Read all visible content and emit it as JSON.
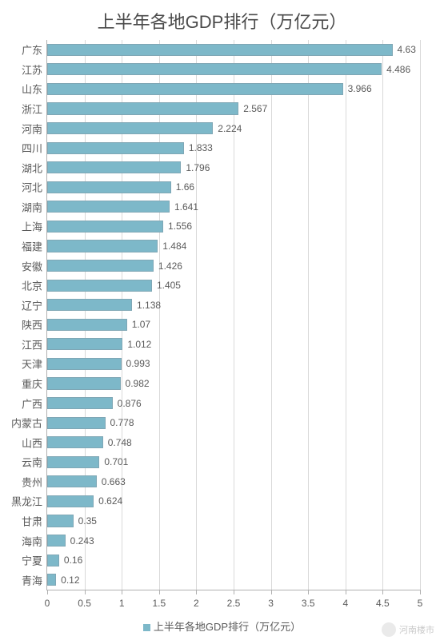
{
  "chart": {
    "type": "bar-horizontal",
    "title": "上半年各地GDP排行（万亿元）",
    "title_fontsize": 22,
    "title_color": "#4a4a4a",
    "background_color": "#ffffff",
    "bar_color": "#7db8c9",
    "bar_border_color": "#7fa7b5",
    "grid_color": "#d9d9d9",
    "axis_color": "#b0b0b0",
    "label_color": "#5a5a5a",
    "label_fontsize": 13,
    "value_label_fontsize": 12,
    "x": {
      "min": 0,
      "max": 5,
      "step": 0.5,
      "ticks": [
        "0",
        "0.5",
        "1",
        "1.5",
        "2",
        "2.5",
        "3",
        "3.5",
        "4",
        "4.5",
        "5"
      ]
    },
    "bar_fill_ratio": 0.62,
    "categories": [
      "广东",
      "江苏",
      "山东",
      "浙江",
      "河南",
      "四川",
      "湖北",
      "河北",
      "湖南",
      "上海",
      "福建",
      "安徽",
      "北京",
      "辽宁",
      "陕西",
      "江西",
      "天津",
      "重庆",
      "广西",
      "内蒙古",
      "山西",
      "云南",
      "贵州",
      "黑龙江",
      "甘肃",
      "海南",
      "宁夏",
      "青海"
    ],
    "values": [
      4.63,
      4.486,
      3.966,
      2.567,
      2.224,
      1.833,
      1.796,
      1.66,
      1.641,
      1.556,
      1.484,
      1.426,
      1.405,
      1.138,
      1.07,
      1.012,
      0.993,
      0.982,
      0.876,
      0.778,
      0.748,
      0.701,
      0.663,
      0.624,
      0.35,
      0.243,
      0.16,
      0.12
    ],
    "value_labels": [
      "4.63",
      "4.486",
      "3.966",
      "2.567",
      "2.224",
      "1.833",
      "1.796",
      "1.66",
      "1.641",
      "1.556",
      "1.484",
      "1.426",
      "1.405",
      "1.138",
      "1.07",
      "1.012",
      "0.993",
      "0.982",
      "0.876",
      "0.778",
      "0.748",
      "0.701",
      "0.663",
      "0.624",
      "0.35",
      "0.243",
      "0.16",
      "0.12"
    ],
    "legend_label": "上半年各地GDP排行（万亿元）"
  },
  "watermark": {
    "text": "河南楼市"
  }
}
